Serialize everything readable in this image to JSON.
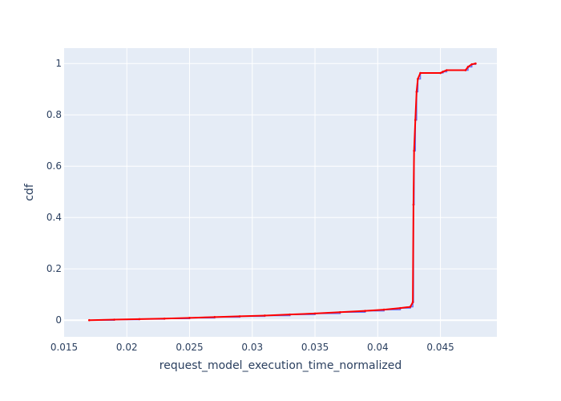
{
  "chart_data": {
    "type": "line",
    "title": "",
    "xlabel": "request_model_execution_time_normalized",
    "ylabel": "cdf",
    "xlim": [
      0.015,
      0.0495
    ],
    "ylim": [
      -0.065,
      1.06
    ],
    "x_ticks": [
      0.015,
      0.02,
      0.025,
      0.03,
      0.035,
      0.04,
      0.045
    ],
    "x_tick_labels": [
      "0.015",
      "0.02",
      "0.025",
      "0.03",
      "0.035",
      "0.04",
      "0.045"
    ],
    "y_ticks": [
      0,
      0.2,
      0.4,
      0.6,
      0.8,
      1
    ],
    "y_tick_labels": [
      "0",
      "0.2",
      "0.4",
      "0.6",
      "0.8",
      "1"
    ],
    "grid": true,
    "legend": "none",
    "colors": {
      "plot_background": "#e5ecf6",
      "grid": "#ffffff",
      "step_line": "#636efa",
      "markers": "#ff0000"
    },
    "series": [
      {
        "role": "steps",
        "color": "#636efa",
        "x": [
          0.017,
          0.019,
          0.021,
          0.023,
          0.025,
          0.027,
          0.029,
          0.031,
          0.033,
          0.035,
          0.037,
          0.039,
          0.0405,
          0.0418,
          0.0426,
          0.0428,
          0.04285,
          0.0429,
          0.043,
          0.0431,
          0.0432,
          0.0434,
          0.045,
          0.0452,
          0.0455,
          0.047,
          0.0472,
          0.0475,
          0.0478
        ],
        "y": [
          0.0,
          0.002,
          0.004,
          0.006,
          0.009,
          0.012,
          0.015,
          0.018,
          0.022,
          0.026,
          0.031,
          0.036,
          0.041,
          0.047,
          0.052,
          0.07,
          0.45,
          0.66,
          0.78,
          0.89,
          0.94,
          0.963,
          0.963,
          0.968,
          0.974,
          0.974,
          0.987,
          0.997,
          1.0
        ]
      },
      {
        "role": "points",
        "color": "#ff0000",
        "x": [
          0.017,
          0.019,
          0.021,
          0.023,
          0.025,
          0.027,
          0.029,
          0.031,
          0.033,
          0.035,
          0.037,
          0.039,
          0.0405,
          0.0418,
          0.0426,
          0.0428,
          0.04285,
          0.0429,
          0.043,
          0.0431,
          0.0432,
          0.0434,
          0.045,
          0.0452,
          0.0455,
          0.047,
          0.0472,
          0.0475,
          0.0478
        ],
        "y": [
          0.0,
          0.002,
          0.004,
          0.006,
          0.009,
          0.012,
          0.015,
          0.018,
          0.022,
          0.026,
          0.031,
          0.036,
          0.041,
          0.047,
          0.052,
          0.07,
          0.45,
          0.66,
          0.78,
          0.89,
          0.94,
          0.963,
          0.963,
          0.968,
          0.974,
          0.974,
          0.987,
          0.997,
          1.0
        ]
      }
    ]
  }
}
